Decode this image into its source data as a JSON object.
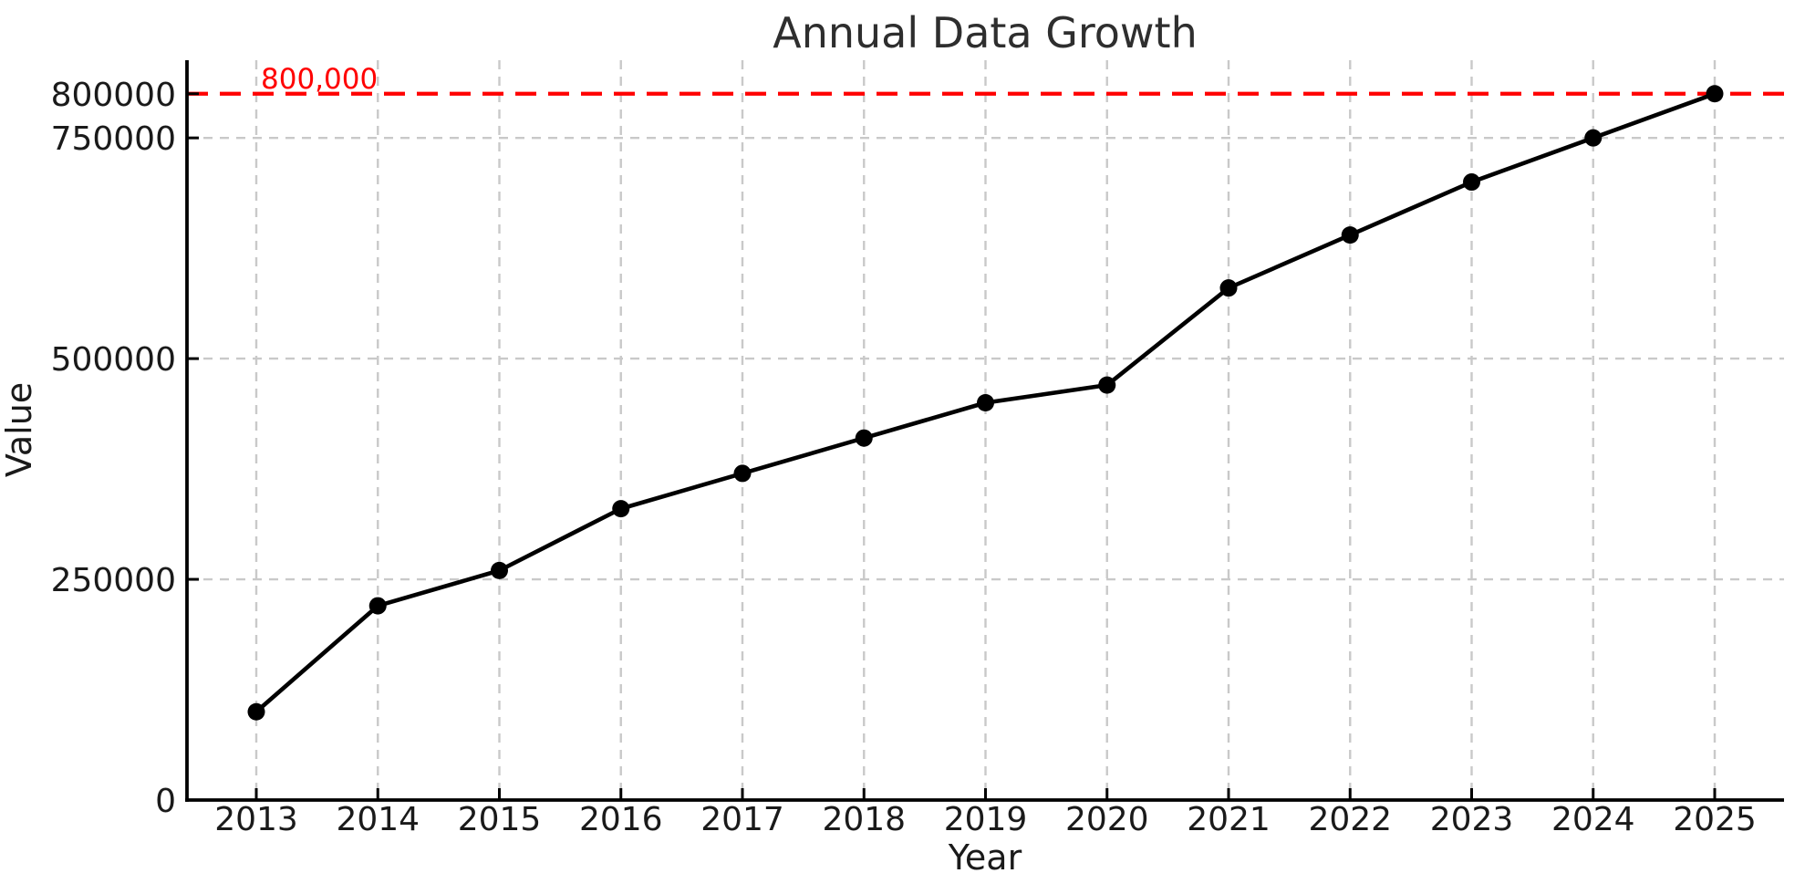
{
  "chart_data": {
    "type": "line",
    "title": "Annual Data Growth",
    "xlabel": "Year",
    "ylabel": "Value",
    "x": [
      "2013",
      "2014",
      "2015",
      "2016",
      "2017",
      "2018",
      "2019",
      "2020",
      "2021",
      "2022",
      "2023",
      "2024",
      "2025"
    ],
    "series": [
      {
        "name": "Value",
        "values": [
          100000,
          220000,
          260000,
          330000,
          370000,
          410000,
          450000,
          470000,
          580000,
          640000,
          700000,
          750000,
          800000
        ]
      }
    ],
    "yticks": [
      0,
      250000,
      500000,
      750000,
      800000
    ],
    "ytick_labels": [
      "0",
      "250000",
      "500000",
      "750000",
      "800000"
    ],
    "ylim": [
      0,
      838000
    ],
    "grid": true,
    "legend": false,
    "marker": "circle",
    "annotation": {
      "label": "800,000",
      "value": 800000
    },
    "colors": {
      "line": "#000000",
      "marker": "#000000",
      "grid": "#c9c9c9",
      "threshold": "#ff0000",
      "text": "#1a1a1a",
      "title": "#2e2e2e",
      "background": "#ffffff"
    }
  }
}
